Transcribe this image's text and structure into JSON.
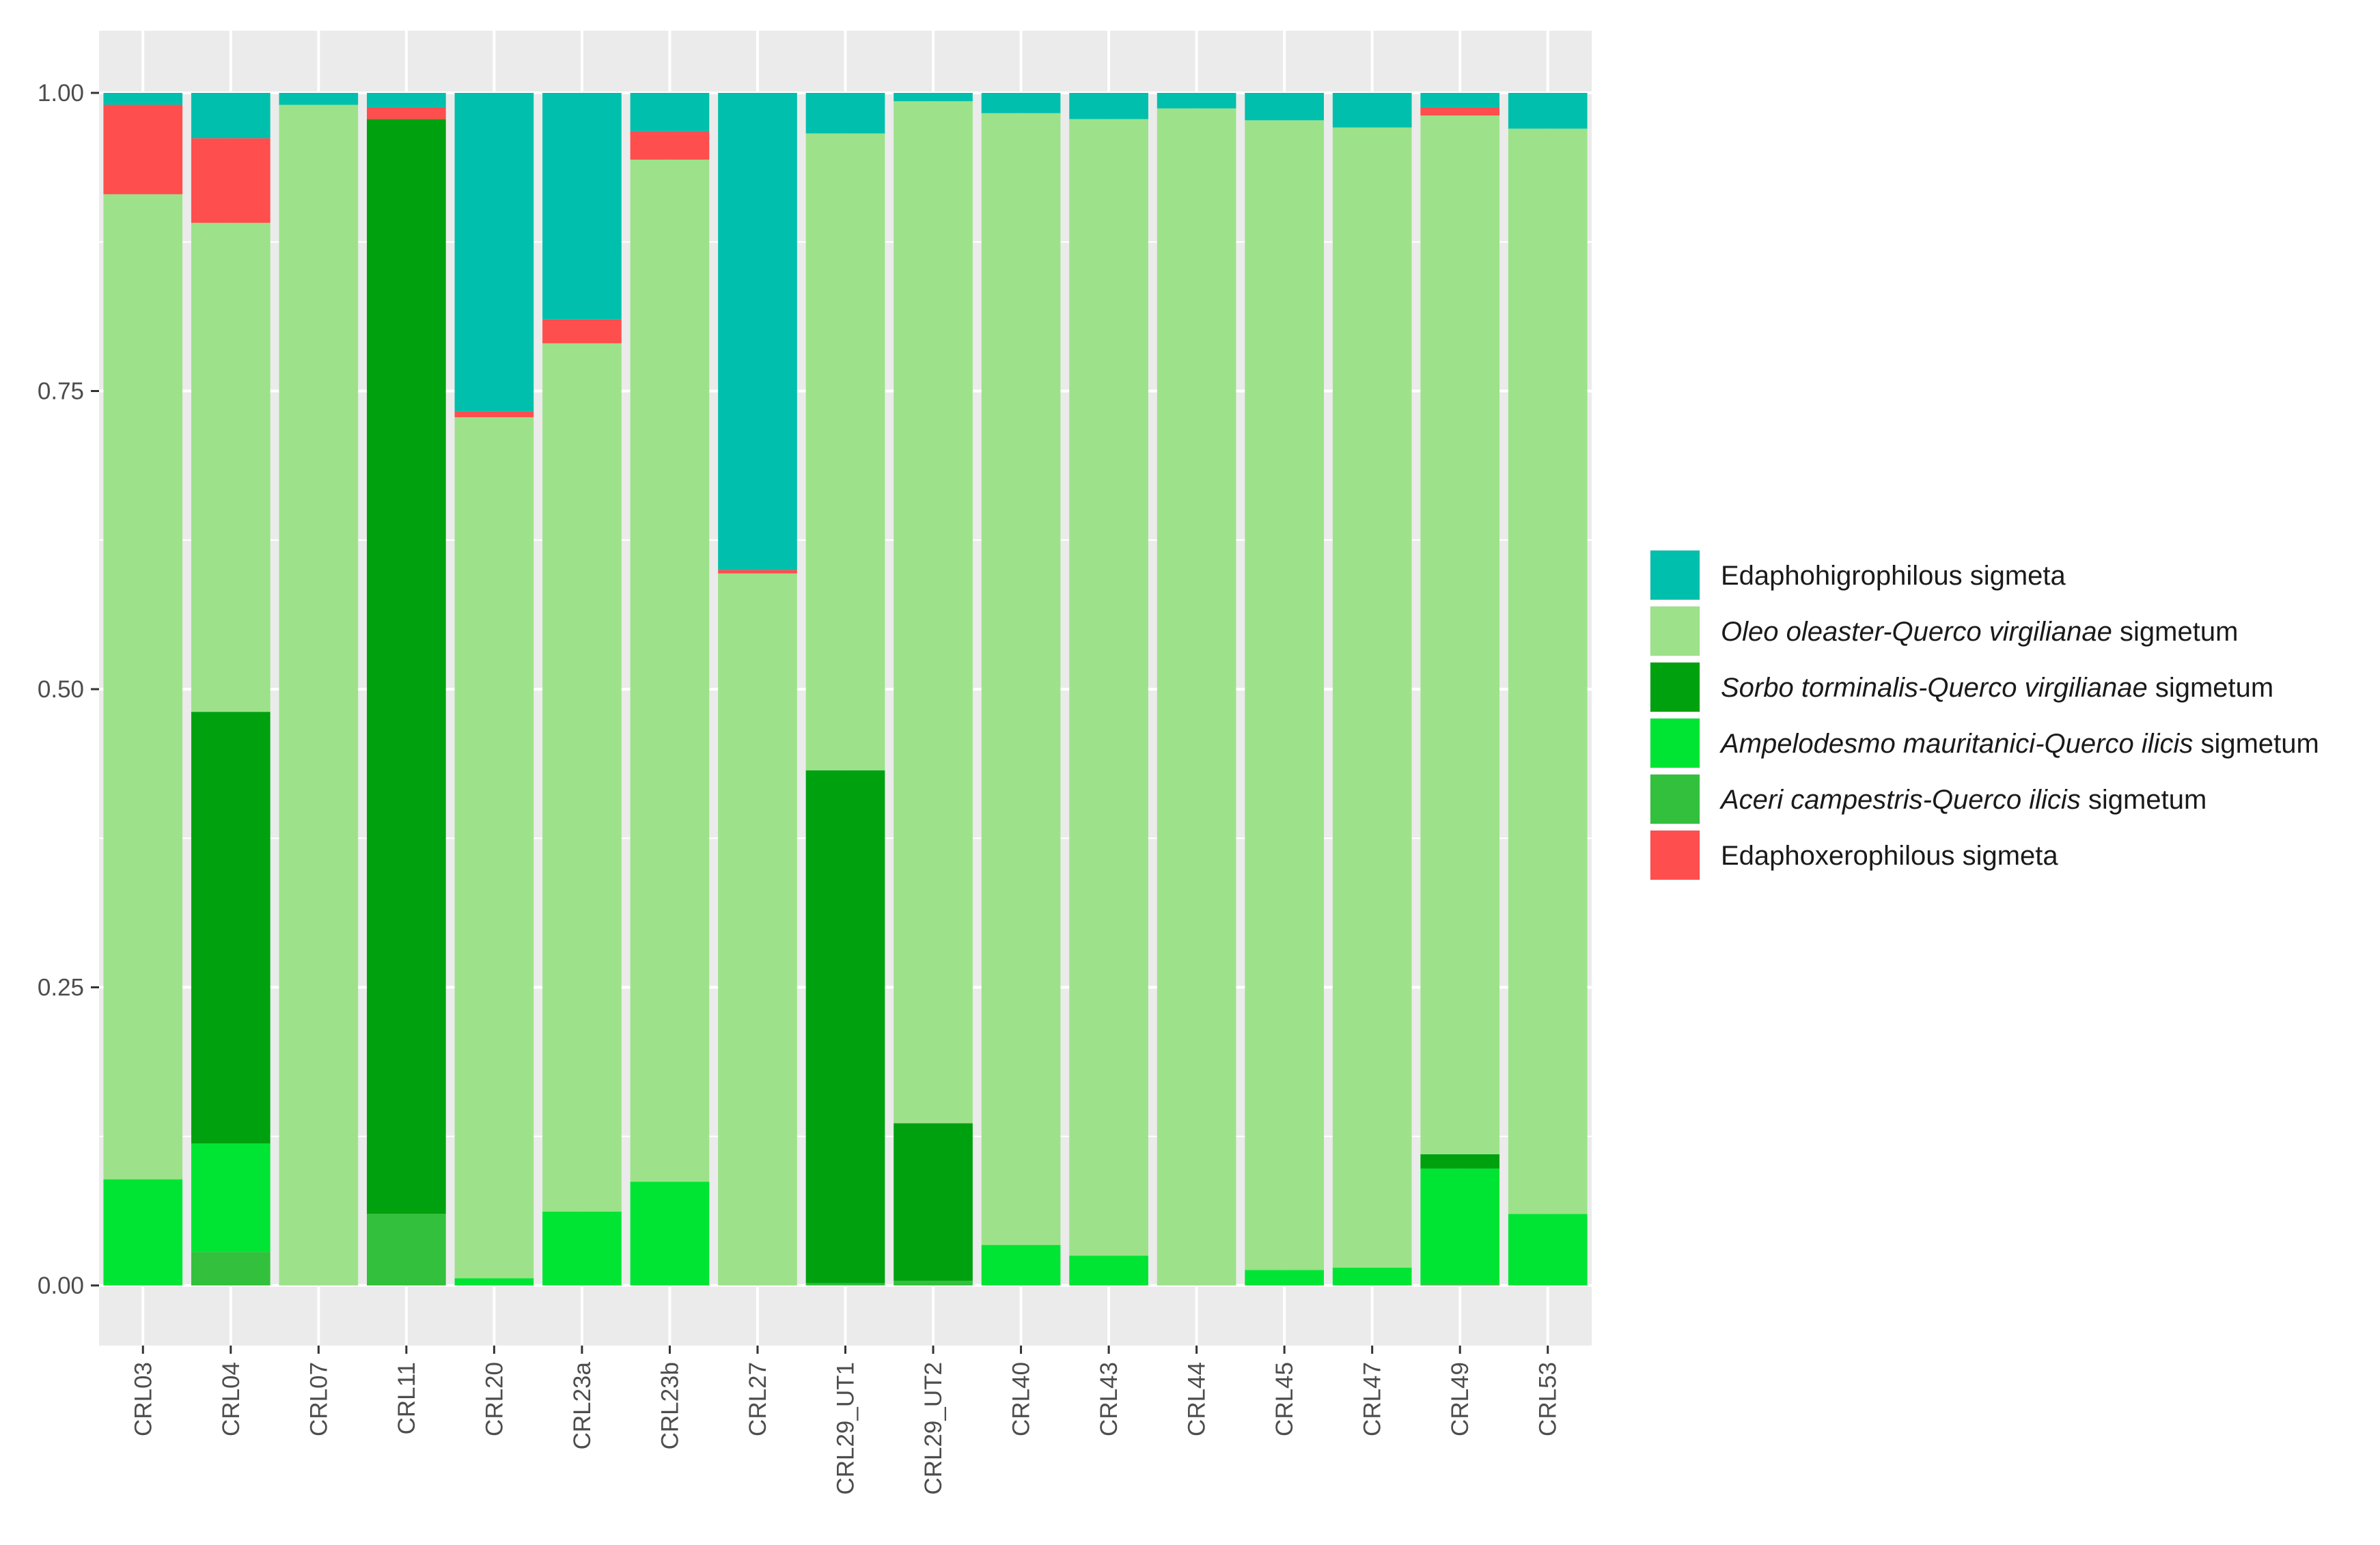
{
  "chart_data": {
    "type": "bar",
    "stacked": true,
    "title": "",
    "xlabel": "",
    "ylabel": "",
    "ylim": [
      0,
      1
    ],
    "y_ticks": [
      "0.00",
      "0.25",
      "0.50",
      "0.75",
      "1.00"
    ],
    "y_tick_values": [
      0,
      0.25,
      0.5,
      0.75,
      1.0
    ],
    "categories": [
      "CRL03",
      "CRL04",
      "CRL07",
      "CRL11",
      "CRL20",
      "CRL23a",
      "CRL23b",
      "CRL27",
      "CRL29_UT1",
      "CRL29_UT2",
      "CRL40",
      "CRL43",
      "CRL44",
      "CRL45",
      "CRL47",
      "CRL49",
      "CRL53"
    ],
    "stack_order_bottom_to_top": [
      "Aceri campestris-Querco ilicis sigmetum",
      "Ampelodesmo mauritanici-Querco ilicis sigmetum",
      "Sorbo torminalis-Querco virgilianae sigmetum",
      "Oleo oleaster-Querco virgilianae sigmetum",
      "Edaphoxerophilous sigmeta",
      "Edaphohigrophilous sigmeta"
    ],
    "series": [
      {
        "name": "Edaphohigrophilous sigmeta",
        "color": "#00bfac",
        "values": [
          0.01,
          0.038,
          0.01,
          0.012,
          0.267,
          0.19,
          0.032,
          0.4,
          0.034,
          0.007,
          0.017,
          0.022,
          0.013,
          0.023,
          0.029,
          0.012,
          0.03
        ]
      },
      {
        "name": "Oleo oleaster-Querco virgilianae sigmetum",
        "color": "#9de28a",
        "values": [
          0.826,
          0.41,
          0.99,
          0.0,
          0.722,
          0.728,
          0.857,
          0.597,
          0.534,
          0.857,
          0.949,
          0.953,
          0.987,
          0.964,
          0.956,
          0.871,
          0.91
        ]
      },
      {
        "name": "Sorbo torminalis-Querco virgilianae sigmetum",
        "color": "#00a10f",
        "values": [
          0.0,
          0.362,
          0.0,
          0.918,
          0.0,
          0.0,
          0.0,
          0.0,
          0.43,
          0.132,
          0.0,
          0.0,
          0.0,
          0.0,
          0.0,
          0.012,
          0.0
        ]
      },
      {
        "name": "Ampelodesmo mauritanici-Querco ilicis sigmetum",
        "color": "#00e533",
        "values": [
          0.089,
          0.091,
          0.0,
          0.0,
          0.006,
          0.062,
          0.087,
          0.0,
          0.0,
          0.0,
          0.034,
          0.025,
          0.0,
          0.013,
          0.015,
          0.097,
          0.06
        ]
      },
      {
        "name": "Aceri campestris-Querco ilicis sigmetum",
        "color": "#33c03c",
        "values": [
          0.0,
          0.028,
          0.0,
          0.06,
          0.0,
          0.0,
          0.0,
          0.0,
          0.002,
          0.004,
          0.0,
          0.0,
          0.0,
          0.0,
          0.0,
          0.001,
          0.0
        ]
      },
      {
        "name": "Edaphoxerophilous sigmeta",
        "color": "#ff4e4e",
        "values": [
          0.075,
          0.071,
          0.0,
          0.01,
          0.005,
          0.02,
          0.024,
          0.003,
          0.0,
          0.0,
          0.0,
          0.0,
          0.0,
          0.0,
          0.0,
          0.007,
          0.0
        ]
      }
    ],
    "legend": {
      "position": "right",
      "items": [
        {
          "series": "Edaphohigrophilous sigmeta",
          "color": "#00bfac",
          "parts": [
            {
              "text": "Edaphohigrophilous sigmeta",
              "italic": false
            }
          ]
        },
        {
          "series": "Oleo oleaster-Querco virgilianae sigmetum",
          "color": "#9de28a",
          "parts": [
            {
              "text": "Oleo oleaster-Querco virgilianae",
              "italic": true
            },
            {
              "text": " sigmetum",
              "italic": false
            }
          ]
        },
        {
          "series": "Sorbo torminalis-Querco virgilianae sigmetum",
          "color": "#00a10f",
          "parts": [
            {
              "text": "Sorbo torminalis-Querco virgilianae",
              "italic": true
            },
            {
              "text": " sigmetum",
              "italic": false
            }
          ]
        },
        {
          "series": "Ampelodesmo mauritanici-Querco ilicis sigmetum",
          "color": "#00e533",
          "parts": [
            {
              "text": "Ampelodesmo mauritanici-Querco ilicis",
              "italic": true
            },
            {
              "text": " sigmetum",
              "italic": false
            }
          ]
        },
        {
          "series": "Aceri campestris-Querco ilicis sigmetum",
          "color": "#33c03c",
          "parts": [
            {
              "text": "Aceri campestris-Querco ilicis",
              "italic": true
            },
            {
              "text": " sigmetum",
              "italic": false
            }
          ]
        },
        {
          "series": "Edaphoxerophilous sigmeta",
          "color": "#ff4e4e",
          "parts": [
            {
              "text": "Edaphoxerophilous sigmeta",
              "italic": false
            }
          ]
        }
      ]
    },
    "grid": true,
    "panel_background": "#ebebeb"
  }
}
